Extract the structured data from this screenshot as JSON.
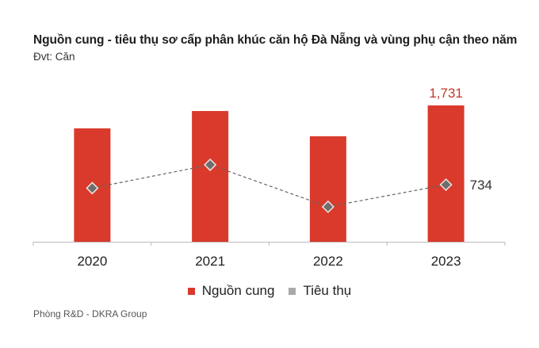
{
  "header": {
    "title": "Nguồn cung - tiêu thụ sơ cấp phân khúc căn hộ Đà Nẵng và vùng phụ cận theo năm",
    "unit": "Đvt: Căn"
  },
  "footer": {
    "source": "Phòng R&D - DKRA Group"
  },
  "colors": {
    "supply": "#d93a2b",
    "consumption_marker": "#6e6e6e",
    "consumption_line": "#666666",
    "label_highlight": "#c0392b",
    "axis": "#bbbbbb"
  },
  "chart_data": {
    "type": "bar",
    "title": "Nguồn cung - tiêu thụ sơ cấp phân khúc căn hộ Đà Nẵng và vùng phụ cận theo năm",
    "subtitle": "Đvt: Căn",
    "xlabel": "",
    "ylabel": "",
    "categories": [
      "2020",
      "2021",
      "2022",
      "2023"
    ],
    "ylim": [
      0,
      1731
    ],
    "grid": false,
    "legend_position": "bottom-center",
    "series": [
      {
        "name": "Nguồn cung",
        "type": "bar",
        "values": [
          1440,
          1660,
          1340,
          1731
        ],
        "data_labels": [
          null,
          null,
          null,
          "1,731"
        ]
      },
      {
        "name": "Tiêu thụ",
        "type": "line",
        "style": "dashed, diamond markers",
        "values": [
          690,
          990,
          450,
          734
        ],
        "data_labels": [
          null,
          null,
          null,
          "734"
        ]
      }
    ]
  }
}
